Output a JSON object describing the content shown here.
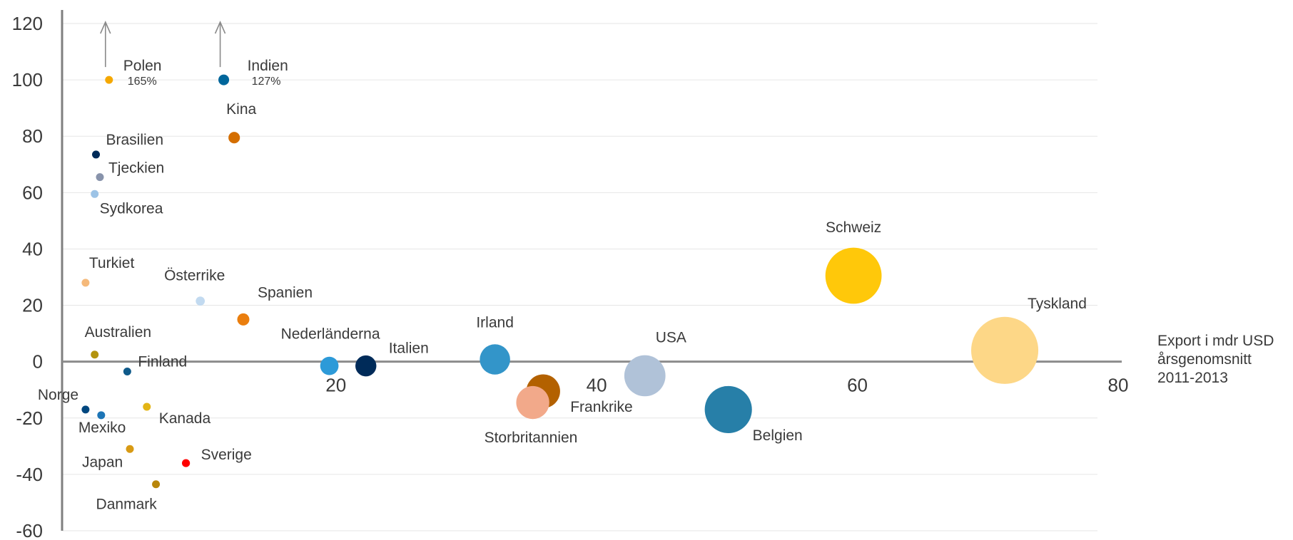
{
  "chart_data": {
    "type": "scatter",
    "title": "",
    "xlabel": "Export i mdr USD årsgenomsnitt 2011-2013",
    "xlabel_lines": [
      "Export i mdr USD",
      "årsgenomsnitt",
      "2011-2013"
    ],
    "ylabel": "",
    "xlim": [
      -1,
      80
    ],
    "ylim": [
      -60,
      120
    ],
    "x_ticks": [
      20,
      40,
      60,
      80
    ],
    "x_tick_labels": [
      "20",
      "40",
      "60",
      "80"
    ],
    "y_ticks": [
      120,
      100,
      80,
      60,
      40,
      20,
      0,
      -20,
      -40,
      -60
    ],
    "y_tick_labels": [
      "120",
      "100",
      "80",
      "60",
      "40",
      "20",
      "0",
      "-20",
      "-40",
      "-60"
    ],
    "grid": true,
    "legend": "none",
    "points": [
      {
        "label": "Polen",
        "x": 2.6,
        "y": 100,
        "color": "#f5a800",
        "note": "165%",
        "clipped": true
      },
      {
        "label": "Indien",
        "x": 11.4,
        "y": 100,
        "color": "#00669b",
        "note": "127%",
        "clipped": true
      },
      {
        "label": "Kina",
        "x": 12.2,
        "y": 79.5,
        "color": "#d46e00"
      },
      {
        "label": "Brasilien",
        "x": 1.6,
        "y": 73.5,
        "color": "#002b59"
      },
      {
        "label": "Tjeckien",
        "x": 1.9,
        "y": 65.5,
        "color": "#8893ab"
      },
      {
        "label": "Sydkorea",
        "x": 1.5,
        "y": 59.5,
        "color": "#9cc3e6"
      },
      {
        "label": "Turkiet",
        "x": 0.8,
        "y": 28,
        "color": "#f5b97a"
      },
      {
        "label": "Österrike",
        "x": 9.6,
        "y": 21.5,
        "color": "#c2daf0"
      },
      {
        "label": "Spanien",
        "x": 12.9,
        "y": 15,
        "color": "#ea7e0e"
      },
      {
        "label": "Australien",
        "x": 1.5,
        "y": 2.5,
        "color": "#b3930e"
      },
      {
        "label": "Nederländerna",
        "x": 19.5,
        "y": -1.5,
        "color": "#2d9ad8"
      },
      {
        "label": "Italien",
        "x": 22.3,
        "y": -1.5,
        "color": "#002b59"
      },
      {
        "label": "Irland",
        "x": 32.2,
        "y": 0.8,
        "color": "#3395c9"
      },
      {
        "label": "Frankrike",
        "x": 35.9,
        "y": -10.5,
        "color": "#b36100"
      },
      {
        "label": "Storbritannien",
        "x": 35.1,
        "y": -14.5,
        "color": "#f2a98a"
      },
      {
        "label": "USA",
        "x": 43.7,
        "y": -5,
        "color": "#b0c2d8"
      },
      {
        "label": "Belgien",
        "x": 50.1,
        "y": -17,
        "color": "#277fa8"
      },
      {
        "label": "Schweiz",
        "x": 59.7,
        "y": 30.5,
        "color": "#ffc80a"
      },
      {
        "label": "Tyskland",
        "x": 71.3,
        "y": 4,
        "color": "#fdd787"
      },
      {
        "label": "Finland",
        "x": 4.0,
        "y": -3.5,
        "color": "#0f5a8a"
      },
      {
        "label": "Norge",
        "x": 0.8,
        "y": -17,
        "color": "#00477f"
      },
      {
        "label": "Mexiko",
        "x": 2.0,
        "y": -19,
        "color": "#1d75b6"
      },
      {
        "label": "Kanada",
        "x": 5.5,
        "y": -16,
        "color": "#e3b516"
      },
      {
        "label": "Japan",
        "x": 4.2,
        "y": -31,
        "color": "#d89a14"
      },
      {
        "label": "Sverige",
        "x": 8.5,
        "y": -36,
        "color": "#ff0000"
      },
      {
        "label": "Danmark",
        "x": 6.2,
        "y": -43.5,
        "color": "#b8860b"
      }
    ]
  }
}
